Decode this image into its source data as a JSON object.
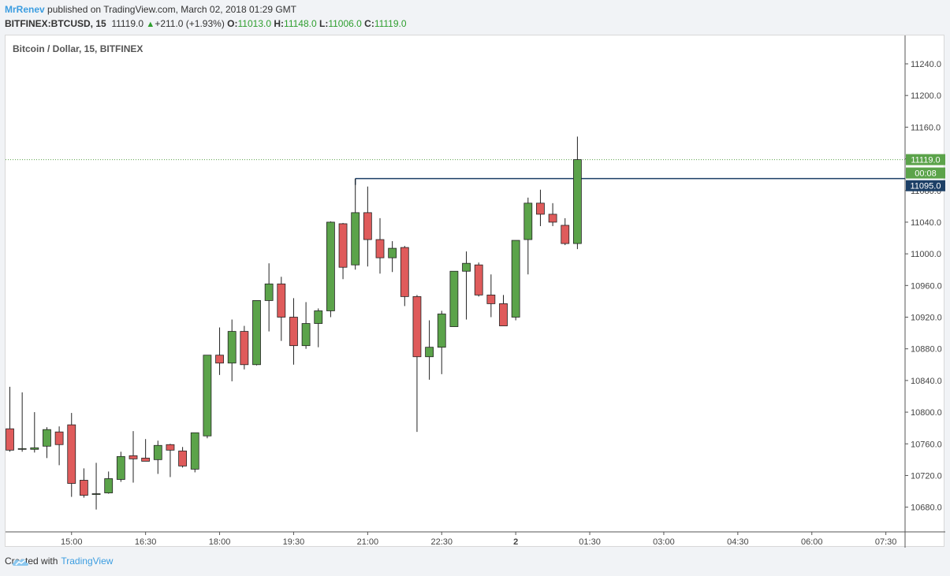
{
  "header": {
    "author": "MrRenev",
    "published": "published on TradingView.com, March 02, 2018 01:29 GMT",
    "symbol": "BITFINEX:BTCUSD, 15",
    "last": "11119.0",
    "change": "+211.0 (+1.93%)",
    "o_label": "O:",
    "o_value": "11013.0",
    "h_label": "H:",
    "h_value": "11148.0",
    "l_label": "L:",
    "l_value": "11006.0",
    "c_label": "C:",
    "c_value": "11119.0"
  },
  "chart_title": "Bitcoin / Dollar, 15, BITFINEX",
  "price_labels": {
    "last": "11119.0",
    "countdown": "00:08",
    "hline": "11095.0"
  },
  "footer": {
    "created_with": "Created with",
    "brand": "TradingView"
  },
  "colors": {
    "up": "#5ba34a",
    "down": "#df5b5b",
    "wick": "#222222",
    "hline": "#1c3f66",
    "last_price": "#5ba34a",
    "brand": "#3c9de0"
  },
  "icons": {
    "logo": "tradingview-cloud-icon",
    "up_arrow": "triangle-up-icon"
  },
  "chart_data": {
    "type": "candlestick",
    "title": "Bitcoin / Dollar, 15, BITFINEX",
    "y_ticks": [
      11240.0,
      11200.0,
      11160.0,
      11120.0,
      11080.0,
      11040.0,
      11000.0,
      10960.0,
      10920.0,
      10880.0,
      10840.0,
      10800.0,
      10760.0,
      10720.0,
      10680.0
    ],
    "y_tick_labels": [
      "11240.0",
      "11200.0",
      "11160.0",
      "11120.0",
      "11080.0",
      "11040.0",
      "11000.0",
      "10960.0",
      "10920.0",
      "10880.0",
      "10840.0",
      "10800.0",
      "10760.0",
      "10720.0",
      "10680.0"
    ],
    "x_tick_labels": [
      "15:00",
      "16:30",
      "18:00",
      "19:30",
      "21:00",
      "22:30",
      "2",
      "01:30",
      "03:00",
      "04:30",
      "06:00",
      "07:30"
    ],
    "x_tick_slot": [
      5,
      11,
      17,
      23,
      29,
      35,
      41,
      47,
      53,
      59,
      65,
      71
    ],
    "horizontal_line": {
      "price": 11095.0,
      "from_slot": 28
    },
    "last_price": 11119.0,
    "ohlc": [
      [
        10779,
        10832,
        10750,
        10752
      ],
      [
        10754,
        10825,
        10750,
        10754
      ],
      [
        10753,
        10800,
        10749,
        10755
      ],
      [
        10757,
        10781,
        10742,
        10778
      ],
      [
        10775,
        10782,
        10733,
        10759
      ],
      [
        10784,
        10799,
        10693,
        10710
      ],
      [
        10714,
        10729,
        10692,
        10695
      ],
      [
        10696,
        10736,
        10677,
        10697
      ],
      [
        10698,
        10725,
        10697,
        10716
      ],
      [
        10715,
        10750,
        10712,
        10744
      ],
      [
        10745,
        10776,
        10711,
        10741
      ],
      [
        10742,
        10766,
        10738,
        10738
      ],
      [
        10740,
        10764,
        10722,
        10758
      ],
      [
        10759,
        10760,
        10718,
        10752
      ],
      [
        10751,
        10756,
        10730,
        10732
      ],
      [
        10728,
        10774,
        10724,
        10774
      ],
      [
        10770,
        10869,
        10767,
        10872
      ],
      [
        10872,
        10907,
        10847,
        10862
      ],
      [
        10862,
        10917,
        10839,
        10902
      ],
      [
        10902,
        10909,
        10854,
        10860
      ],
      [
        10860,
        10941,
        10859,
        10941
      ],
      [
        10941,
        10988,
        10902,
        10962
      ],
      [
        10962,
        10971,
        10890,
        10920
      ],
      [
        10920,
        10944,
        10860,
        10884
      ],
      [
        10884,
        10939,
        10880,
        10912
      ],
      [
        10912,
        10931,
        10882,
        10928
      ],
      [
        10928,
        11041,
        10920,
        11040
      ],
      [
        11038,
        11039,
        10968,
        10983
      ],
      [
        10986,
        11095,
        10980,
        11052
      ],
      [
        11052,
        11085,
        10984,
        11018
      ],
      [
        11018,
        11045,
        10975,
        10995
      ],
      [
        10995,
        11016,
        10977,
        11007
      ],
      [
        11008,
        11010,
        10934,
        10946
      ],
      [
        10946,
        10948,
        10775,
        10870
      ],
      [
        10870,
        10916,
        10841,
        10882
      ],
      [
        10882,
        10928,
        10848,
        10924
      ],
      [
        10908,
        10977,
        10908,
        10978
      ],
      [
        10978,
        11003,
        10917,
        10988
      ],
      [
        10986,
        10989,
        10946,
        10948
      ],
      [
        10948,
        10974,
        10920,
        10937
      ],
      [
        10937,
        10948,
        10910,
        10909
      ],
      [
        10920,
        11015,
        10916,
        11017
      ],
      [
        11018,
        11071,
        10974,
        11064
      ],
      [
        11064,
        11081,
        11035,
        11050
      ],
      [
        11050,
        11064,
        11035,
        11040
      ],
      [
        11036,
        11045,
        11011,
        11013
      ],
      [
        11013,
        11148,
        11006,
        11119
      ]
    ]
  }
}
